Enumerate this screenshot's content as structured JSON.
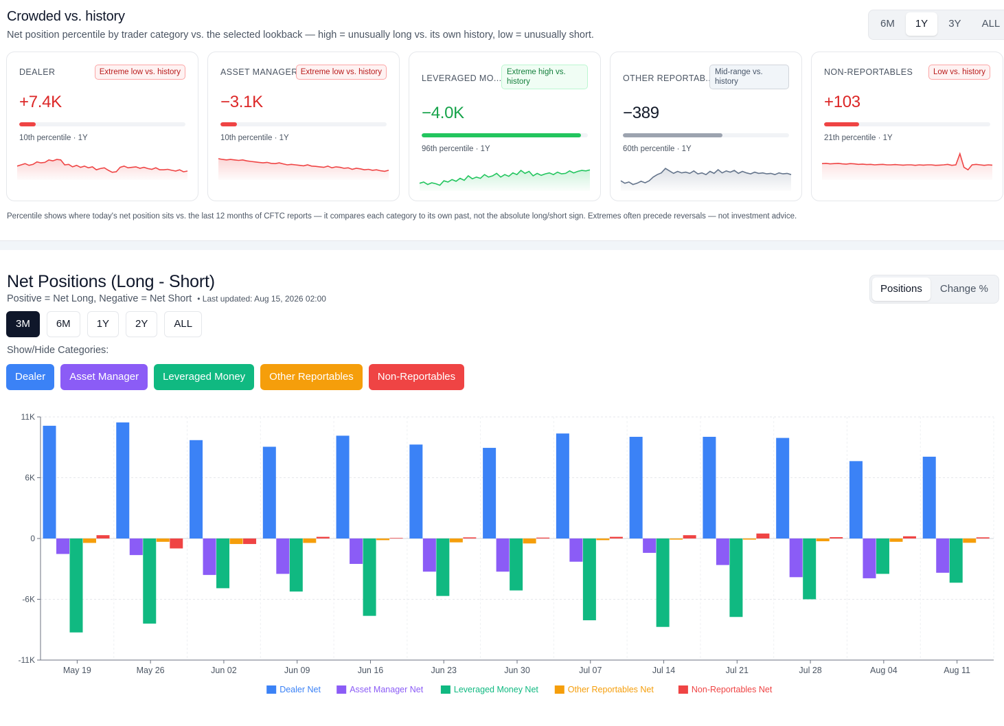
{
  "crowded": {
    "title": "Crowded vs. history",
    "subtitle": "Net position percentile by trader category vs. the selected lookback — high = unusually long vs. its own history, low = unusually short.",
    "lookback_options": [
      "6M",
      "1Y",
      "3Y",
      "ALL"
    ],
    "lookback_active": "1Y",
    "footnote": "Percentile shows where today's net position sits vs. the last 12 months of CFTC reports — it compares each category to its own past, not the absolute long/short sign. Extremes often precede reversals — not investment advice.",
    "cards": [
      {
        "label": "DEALER",
        "badge": "Extreme low vs. history",
        "badge_tone": "red",
        "value": "+7.4K",
        "value_tone": "red",
        "percentile": 10,
        "bar_color": "#ef4444",
        "percentile_text": "10th percentile · 1Y",
        "spark_color": "#ef4444",
        "spark": [
          0.45,
          0.5,
          0.55,
          0.48,
          0.52,
          0.62,
          0.58,
          0.6,
          0.7,
          0.66,
          0.72,
          0.7,
          0.5,
          0.52,
          0.42,
          0.48,
          0.4,
          0.45,
          0.38,
          0.42,
          0.3,
          0.35,
          0.38,
          0.28,
          0.2,
          0.22,
          0.4,
          0.45,
          0.38,
          0.4,
          0.42,
          0.36,
          0.4,
          0.35,
          0.32,
          0.38,
          0.3,
          0.3,
          0.32,
          0.28,
          0.25,
          0.3,
          0.22,
          0.25
        ]
      },
      {
        "label": "ASSET MANAGER",
        "badge": "Extreme low vs. history",
        "badge_tone": "red",
        "value": "−3.1K",
        "value_tone": "red",
        "percentile": 10,
        "bar_color": "#ef4444",
        "percentile_text": "10th percentile · 1Y",
        "spark_color": "#ef4444",
        "spark": [
          0.75,
          0.72,
          0.7,
          0.72,
          0.7,
          0.68,
          0.7,
          0.66,
          0.64,
          0.62,
          0.6,
          0.58,
          0.6,
          0.56,
          0.55,
          0.58,
          0.54,
          0.5,
          0.52,
          0.5,
          0.48,
          0.46,
          0.5,
          0.45,
          0.44,
          0.42,
          0.4,
          0.45,
          0.38,
          0.42,
          0.4,
          0.36,
          0.38,
          0.32,
          0.36,
          0.34,
          0.3,
          0.32,
          0.28,
          0.3,
          0.26,
          0.24,
          0.28
        ]
      },
      {
        "label": "LEVERAGED MO...",
        "badge": "Extreme high vs. history",
        "badge_tone": "green",
        "value": "−4.0K",
        "value_tone": "green",
        "percentile": 96,
        "bar_color": "#22c55e",
        "percentile_text": "96th percentile · 1Y",
        "spark_color": "#22c55e",
        "spark": [
          0.2,
          0.25,
          0.15,
          0.22,
          0.18,
          0.12,
          0.3,
          0.25,
          0.35,
          0.28,
          0.4,
          0.32,
          0.5,
          0.38,
          0.45,
          0.4,
          0.55,
          0.45,
          0.5,
          0.6,
          0.45,
          0.55,
          0.48,
          0.62,
          0.55,
          0.72,
          0.6,
          0.68,
          0.5,
          0.6,
          0.52,
          0.58,
          0.62,
          0.55,
          0.65,
          0.58,
          0.6,
          0.7,
          0.62,
          0.68,
          0.72,
          0.7,
          0.74
        ]
      },
      {
        "label": "OTHER REPORTAB...",
        "badge": "Mid-range vs. history",
        "badge_tone": "gray",
        "value": "−389",
        "value_tone": "dark",
        "percentile": 60,
        "bar_color": "#9ca3af",
        "percentile_text": "60th percentile · 1Y",
        "spark_color": "#64748b",
        "spark": [
          0.3,
          0.2,
          0.25,
          0.15,
          0.2,
          0.28,
          0.22,
          0.3,
          0.45,
          0.55,
          0.62,
          0.8,
          0.7,
          0.6,
          0.68,
          0.62,
          0.65,
          0.6,
          0.7,
          0.58,
          0.62,
          0.55,
          0.68,
          0.6,
          0.75,
          0.62,
          0.7,
          0.65,
          0.72,
          0.6,
          0.68,
          0.62,
          0.58,
          0.65,
          0.6,
          0.62,
          0.58,
          0.6,
          0.55,
          0.62,
          0.58,
          0.6,
          0.55
        ]
      },
      {
        "label": "NON-REPORTABLES",
        "badge": "Low vs. history",
        "badge_tone": "red",
        "value": "+103",
        "value_tone": "red",
        "percentile": 21,
        "bar_color": "#ef4444",
        "percentile_text": "21th percentile · 1Y",
        "spark_color": "#ef4444",
        "spark": [
          0.55,
          0.56,
          0.54,
          0.55,
          0.56,
          0.54,
          0.53,
          0.55,
          0.54,
          0.52,
          0.53,
          0.51,
          0.52,
          0.5,
          0.51,
          0.52,
          0.5,
          0.5,
          0.51,
          0.5,
          0.49,
          0.5,
          0.5,
          0.48,
          0.5,
          0.49,
          0.5,
          0.5,
          0.48,
          0.49,
          0.5,
          0.52,
          0.48,
          0.5,
          0.95,
          0.4,
          0.3,
          0.5,
          0.52,
          0.5,
          0.48,
          0.5,
          0.49
        ]
      }
    ]
  },
  "net_positions": {
    "title": "Net Positions (Long - Short)",
    "subtitle": "Positive = Net Long, Negative = Net Short",
    "last_updated": "• Last updated: Aug 15, 2026 02:00",
    "mode_options": [
      "Positions",
      "Change %"
    ],
    "mode_active": "Positions",
    "range_options": [
      "3M",
      "6M",
      "1Y",
      "2Y",
      "ALL"
    ],
    "range_active": "3M",
    "show_hide_label": "Show/Hide Categories:",
    "category_buttons": [
      {
        "label": "Dealer",
        "color": "#3b82f6"
      },
      {
        "label": "Asset Manager",
        "color": "#8b5cf6"
      },
      {
        "label": "Leveraged Money",
        "color": "#10b981"
      },
      {
        "label": "Other Reportables",
        "color": "#f59e0b"
      },
      {
        "label": "Non-Reportables",
        "color": "#ef4444"
      }
    ]
  },
  "chart_data": {
    "type": "bar",
    "categories": [
      "May 19",
      "May 26",
      "Jun 02",
      "Jun 09",
      "Jun 16",
      "Jun 23",
      "Jun 30",
      "Jul 07",
      "Jul 14",
      "Jul 21",
      "Jul 28",
      "Aug 04",
      "Aug 11"
    ],
    "yticks": [
      "11K",
      "6K",
      "0",
      "-6K",
      "-11K"
    ],
    "ylim": [
      -11000,
      11000
    ],
    "grid": true,
    "legend_position": "bottom-center",
    "series": [
      {
        "name": "Dealer Net",
        "color": "#3b82f6",
        "values": [
          10200,
          10500,
          8900,
          8300,
          9300,
          8500,
          8200,
          9500,
          9200,
          9200,
          9100,
          7000,
          7400
        ]
      },
      {
        "name": "Asset Manager Net",
        "color": "#8b5cf6",
        "values": [
          -1400,
          -1500,
          -3300,
          -3200,
          -2300,
          -3000,
          -3000,
          -2100,
          -1300,
          -2400,
          -3500,
          -3600,
          -3100
        ]
      },
      {
        "name": "Leveraged Money Net",
        "color": "#10b981",
        "values": [
          -8500,
          -7700,
          -4500,
          -4800,
          -7000,
          -5200,
          -4700,
          -7400,
          -8000,
          -7100,
          -5500,
          -3200,
          -4000
        ]
      },
      {
        "name": "Other Reportables Net",
        "color": "#f59e0b",
        "values": [
          -400,
          -300,
          -500,
          -400,
          -150,
          -350,
          -450,
          -150,
          -100,
          -100,
          -250,
          -300,
          -389
        ]
      },
      {
        "name": "Non-Reportables Net",
        "color": "#ef4444",
        "values": [
          300,
          -900,
          -500,
          150,
          50,
          100,
          80,
          150,
          300,
          450,
          120,
          200,
          103
        ]
      }
    ]
  }
}
